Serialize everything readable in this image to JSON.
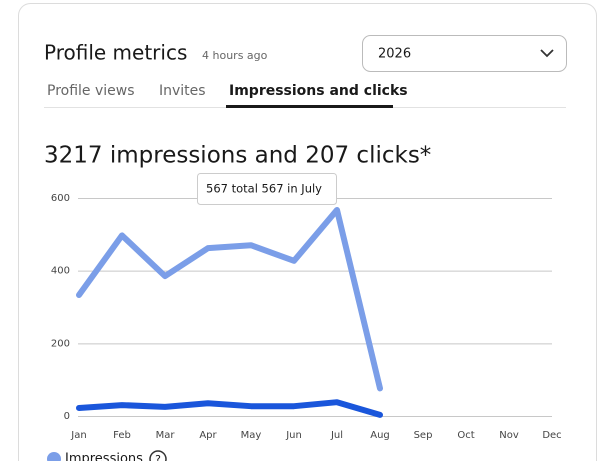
{
  "header": {
    "title": "Profile metrics",
    "updated": "4 hours ago",
    "year": "2026"
  },
  "tabs": [
    "Profile views",
    "Invites",
    "Impressions and clicks"
  ],
  "headline": "3217 impressions and 207 clicks*",
  "tooltip": "567 total 567 in July",
  "help": "?",
  "chart_data": {
    "type": "line",
    "categories": [
      "Jan",
      "Feb",
      "Mar",
      "Apr",
      "May",
      "Jun",
      "Jul",
      "Aug",
      "Sep",
      "Oct",
      "Nov",
      "Dec"
    ],
    "series": [
      {
        "name": "Impressions",
        "color": "#7b9ee8",
        "values": [
          333,
          497,
          385,
          462,
          470,
          427,
          567,
          76,
          null,
          null,
          null,
          null
        ]
      },
      {
        "color": "#1a56db",
        "values": [
          22,
          30,
          25,
          35,
          27,
          27,
          38,
          3,
          null,
          null,
          null,
          null
        ]
      }
    ],
    "ylim": [
      0,
      600
    ],
    "yticks": [
      0,
      200,
      400,
      600
    ],
    "grid": true
  }
}
